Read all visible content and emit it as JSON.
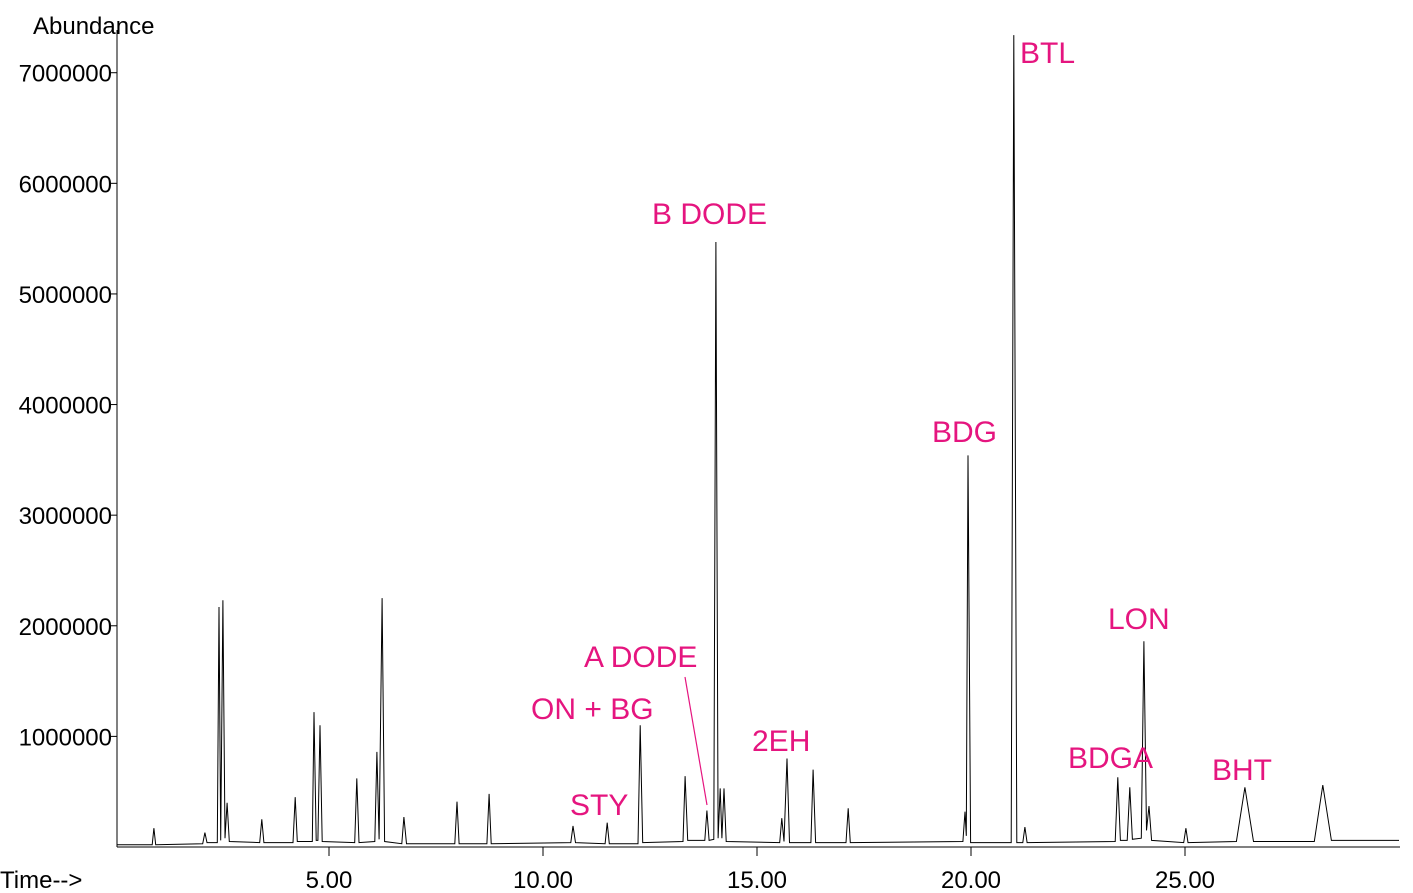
{
  "chart_data": {
    "type": "line",
    "ylabel": "Abundance",
    "xlabel": "Time-->",
    "color": "#000000",
    "xlim": [
      0,
      30
    ],
    "ylim": [
      0,
      7350000
    ],
    "xticks": [
      {
        "value": 5,
        "label": "5.00"
      },
      {
        "value": 10,
        "label": "10.00"
      },
      {
        "value": 15,
        "label": "15.00"
      },
      {
        "value": 20,
        "label": "20.00"
      },
      {
        "value": 25,
        "label": "25.00"
      }
    ],
    "yticks": [
      1000000,
      2000000,
      3000000,
      4000000,
      5000000,
      6000000,
      7000000
    ],
    "annotations": [
      "BTL",
      "B DODE",
      "BDG",
      "LON",
      "A DODE",
      "ON + BG",
      "2EH",
      "BDGA",
      "BHT",
      "STY"
    ],
    "annotation_color": "#e5157f",
    "x": [
      0.05,
      0.87,
      0.91,
      0.95,
      2.05,
      2.1,
      2.15,
      2.39,
      2.43,
      2.47,
      2.52,
      2.57,
      2.62,
      2.67,
      3.38,
      3.43,
      3.48,
      4.16,
      4.21,
      4.26,
      4.61,
      4.65,
      4.7,
      4.74,
      4.79,
      4.84,
      5.6,
      5.65,
      5.7,
      6.07,
      6.12,
      6.17,
      6.24,
      6.3,
      6.7,
      6.75,
      6.81,
      7.94,
      7.99,
      8.04,
      8.69,
      8.74,
      8.79,
      10.65,
      10.7,
      10.76,
      11.45,
      11.5,
      11.55,
      12.22,
      12.27,
      12.33,
      13.27,
      13.32,
      13.38,
      13.78,
      13.83,
      13.88,
      13.99,
      14.04,
      14.09,
      14.14,
      14.18,
      14.23,
      14.28,
      15.53,
      15.58,
      15.63,
      15.7,
      15.76,
      16.26,
      16.31,
      16.37,
      17.08,
      17.13,
      17.18,
      19.81,
      19.86,
      19.89,
      19.93,
      19.99,
      20.94,
      21.0,
      21.07,
      21.21,
      21.26,
      21.31,
      23.37,
      23.43,
      23.49,
      23.65,
      23.71,
      23.77,
      23.98,
      24.04,
      24.1,
      24.16,
      24.22,
      24.97,
      25.02,
      25.07,
      26.2,
      26.4,
      26.6,
      28.02,
      28.22,
      28.42,
      30.0
    ],
    "values": [
      20000,
      20000,
      170000,
      20000,
      30000,
      130000,
      40000,
      40000,
      2170000,
      60000,
      2230000,
      80000,
      400000,
      50000,
      40000,
      250000,
      40000,
      40000,
      450000,
      50000,
      50000,
      1220000,
      60000,
      60000,
      1100000,
      50000,
      40000,
      620000,
      40000,
      50000,
      860000,
      70000,
      2250000,
      50000,
      30000,
      270000,
      30000,
      30000,
      410000,
      30000,
      30000,
      480000,
      30000,
      40000,
      190000,
      40000,
      30000,
      220000,
      30000,
      30000,
      1100000,
      40000,
      50000,
      640000,
      60000,
      60000,
      330000,
      60000,
      70000,
      5470000,
      80000,
      530000,
      80000,
      530000,
      50000,
      40000,
      260000,
      50000,
      800000,
      40000,
      40000,
      700000,
      40000,
      40000,
      350000,
      40000,
      50000,
      320000,
      100000,
      3540000,
      40000,
      40000,
      7340000,
      40000,
      40000,
      180000,
      40000,
      50000,
      630000,
      60000,
      60000,
      540000,
      70000,
      80000,
      1860000,
      150000,
      370000,
      60000,
      40000,
      170000,
      40000,
      50000,
      540000,
      50000,
      50000,
      560000,
      60000,
      60000
    ]
  }
}
